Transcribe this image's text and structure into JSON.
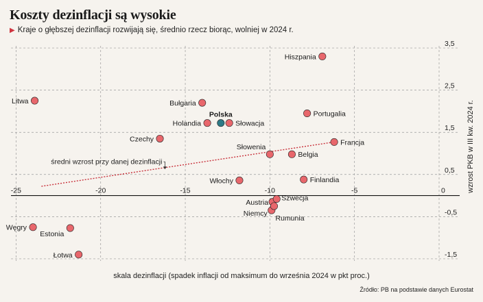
{
  "title": "Koszty dezinflacji są wysokie",
  "subtitle": "Kraje o głębszej dezinflacji rozwijają się, średnio rzecz biorąc, wolniej w 2024 r.",
  "source": "Źródło: PB na podstawie danych Eurostat",
  "colors": {
    "point": "#e8676c",
    "highlight": "#2e7a86",
    "trend": "#c8303a",
    "grid": "#9a9a9a"
  },
  "chart_data": {
    "type": "scatter",
    "title": "Koszty dezinflacji są wysokie",
    "xlabel": "skala dezinflacji (spadek inflacji od maksimum do września 2024 w pkt proc.)",
    "ylabel": "wzrost PKB w III kw. 2024 r.",
    "xlim": [
      -25.3,
      0
    ],
    "ylim": [
      -1.55,
      3.55
    ],
    "xticks": [
      -25,
      -20,
      -15,
      -10,
      -5,
      0
    ],
    "xtick_labels": [
      "-25",
      "-20",
      "-15",
      "-10",
      "-5",
      "0"
    ],
    "yticks": [
      -1.5,
      -0.5,
      0.5,
      1.5,
      2.5,
      3.5
    ],
    "ytick_labels": [
      "-1,5",
      "-0,5",
      "0,5",
      "1,5",
      "2,5",
      "3,5"
    ],
    "trendline": {
      "label": "średni wzrost przy danej dezinflacji",
      "start": [
        -23.5,
        0.22
      ],
      "end": [
        -6.2,
        1.27
      ]
    },
    "points": [
      {
        "label": "Hiszpania",
        "x": -6.9,
        "y": 3.3,
        "highlight": false
      },
      {
        "label": "Litwa",
        "x": -23.9,
        "y": 2.25,
        "highlight": false
      },
      {
        "label": "Bułgaria",
        "x": -14.0,
        "y": 2.2,
        "highlight": false
      },
      {
        "label": "Portugalia",
        "x": -7.8,
        "y": 1.95,
        "highlight": false
      },
      {
        "label": "Holandia",
        "x": -13.7,
        "y": 1.72,
        "highlight": false
      },
      {
        "label": "Polska",
        "x": -12.9,
        "y": 1.72,
        "highlight": true
      },
      {
        "label": "Słowacja",
        "x": -12.4,
        "y": 1.72,
        "highlight": false
      },
      {
        "label": "Czechy",
        "x": -16.5,
        "y": 1.35,
        "highlight": false
      },
      {
        "label": "Francja",
        "x": -6.2,
        "y": 1.27,
        "highlight": false
      },
      {
        "label": "Słowenia",
        "x": -10.0,
        "y": 0.98,
        "highlight": false
      },
      {
        "label": "Belgia",
        "x": -8.7,
        "y": 0.98,
        "highlight": false
      },
      {
        "label": "Włochy",
        "x": -11.8,
        "y": 0.36,
        "highlight": false
      },
      {
        "label": "Finlandia",
        "x": -8.0,
        "y": 0.38,
        "highlight": false
      },
      {
        "label": "Austria",
        "x": -9.85,
        "y": -0.15,
        "highlight": false
      },
      {
        "label": "Szwecja",
        "x": -9.6,
        "y": -0.08,
        "highlight": false
      },
      {
        "label": "Niemcy",
        "x": -9.9,
        "y": -0.35,
        "highlight": false
      },
      {
        "label": "Rumunia",
        "x": -9.75,
        "y": -0.25,
        "highlight": false
      },
      {
        "label": "Węgry",
        "x": -24.0,
        "y": -0.75,
        "highlight": false
      },
      {
        "label": "Estonia",
        "x": -21.8,
        "y": -0.77,
        "highlight": false
      },
      {
        "label": "Łotwa",
        "x": -21.3,
        "y": -1.4,
        "highlight": false
      }
    ]
  }
}
